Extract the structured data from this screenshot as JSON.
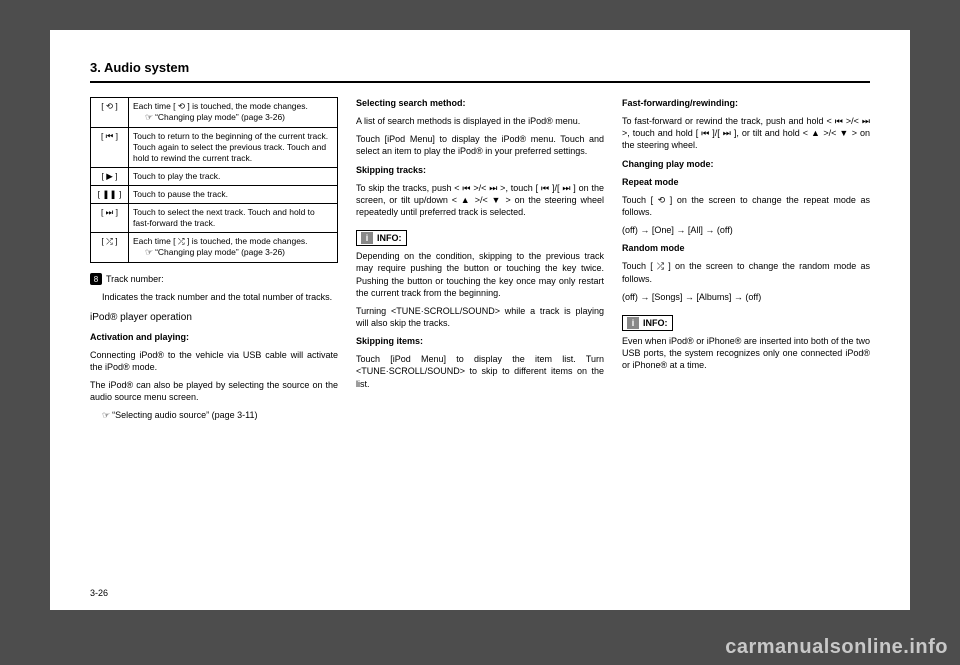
{
  "section_title": "3. Audio system",
  "page_num": "3-26",
  "watermark": "carmanualsonline.info",
  "col1": {
    "table": [
      {
        "icon": "[ ⟲ ]",
        "desc": "Each time [ ⟲ ] is touched, the mode changes.",
        "ref": "“Changing play mode” (page 3-26)"
      },
      {
        "icon": "[ ⏮ ]",
        "desc": "Touch to return to the beginning of the current track. Touch again to select the previous track. Touch and hold to rewind the current track."
      },
      {
        "icon": "[  ▶  ]",
        "desc": "Touch to play the track."
      },
      {
        "icon": "[  ❚❚  ]",
        "desc": "Touch to pause the track."
      },
      {
        "icon": "[ ⏭ ]",
        "desc": "Touch to select the next track. Touch and hold to fast-forward the track."
      },
      {
        "icon": "[ ⤮ ]",
        "desc": "Each time [ ⤮ ] is touched, the mode changes.",
        "ref": "“Changing play mode” (page 3-26)"
      }
    ],
    "tracknum_label": "Track number:",
    "tracknum_desc": "Indicates the track number and the total number of tracks.",
    "sub1": "iPod® player operation",
    "sub2": "Activation and playing:",
    "p1": "Connecting iPod® to the vehicle via USB cable will activate the iPod® mode.",
    "p2": "The iPod® can also be played by selecting the source on the audio source menu screen.",
    "ref": "“Selecting audio source” (page 3-11)"
  },
  "col2": {
    "h1": "Selecting search method:",
    "p1": "A list of search methods is displayed in the iPod® menu.",
    "p2": "Touch [iPod Menu] to display the iPod® menu. Touch and select an item to play the iPod® in your preferred settings.",
    "h2": "Skipping tracks:",
    "p3": "To skip the tracks, push < ⏮ >/< ⏭ >, touch [ ⏮ ]/[ ⏭ ] on the screen, or tilt up/down < ▲ >/< ▼ > on the steering wheel repeatedly until preferred track is selected.",
    "info1": "INFO:",
    "p4": "Depending on the condition, skipping to the previous track may require pushing the button or touching the key twice. Pushing the button or touching the key once may only restart the current track from the beginning.",
    "p5": "Turning <TUNE·SCROLL/SOUND> while a track is playing will also skip the tracks.",
    "h3": "Skipping items:",
    "p6": "Touch [iPod Menu] to display the item list. Turn <TUNE·SCROLL/SOUND> to skip to different items on the list."
  },
  "col3": {
    "h1": "Fast-forwarding/rewinding:",
    "p1": "To fast-forward or rewind the track, push and hold < ⏮ >/< ⏭ >, touch and hold [ ⏮ ]/[ ⏭ ], or tilt and hold < ▲ >/< ▼ > on the steering wheel.",
    "h2": "Changing play mode:",
    "h3": "Repeat mode",
    "p2": "Touch [ ⟲ ] on the screen to change the repeat mode as follows.",
    "p3": "(off) → [One] → [All] → (off)",
    "h4": "Random mode",
    "p4": "Touch [ ⤮ ] on the screen to change the random mode as follows.",
    "p5": "(off) → [Songs] → [Albums] → (off)",
    "info1": "INFO:",
    "p6": "Even when iPod® or iPhone® are inserted into both of the two USB ports, the system recognizes only one connected iPod® or iPhone® at a time."
  }
}
